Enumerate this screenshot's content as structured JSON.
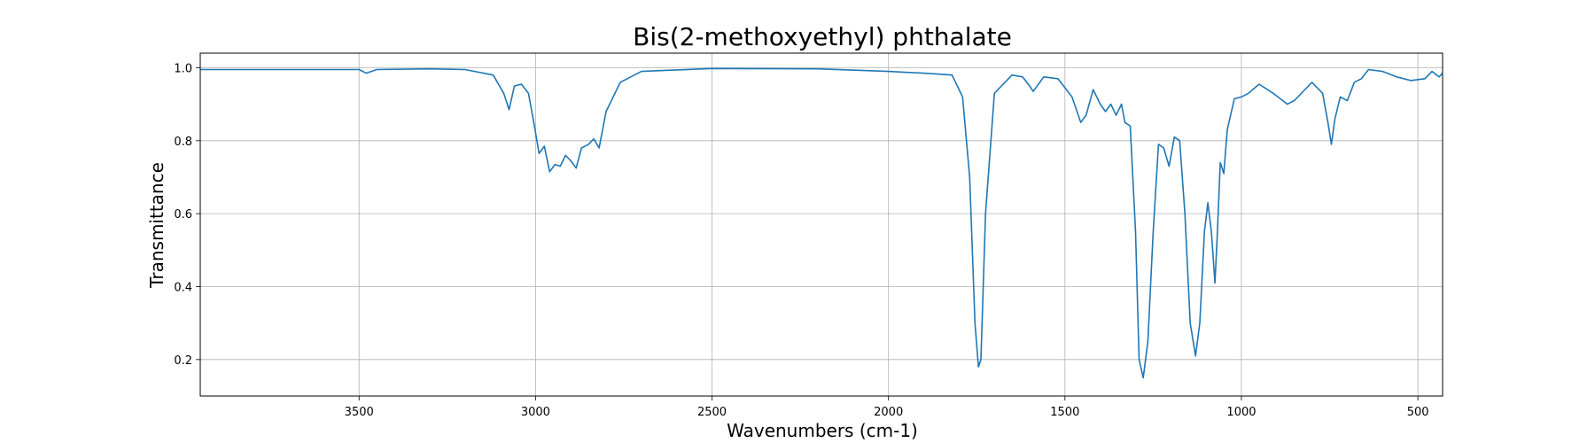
{
  "chart_data": {
    "type": "line",
    "title": "Bis(2-methoxyethyl) phthalate",
    "xlabel": "Wavenumbers (cm-1)",
    "ylabel": "Transmittance",
    "xlim": [
      3950,
      430
    ],
    "ylim": [
      0.1,
      1.04
    ],
    "x_reversed": true,
    "grid": true,
    "xticks": [
      3500,
      3000,
      2500,
      2000,
      1500,
      1000,
      500
    ],
    "yticks": [
      0.2,
      0.4,
      0.6,
      0.8,
      1.0
    ],
    "xtick_labels": [
      "3500",
      "3000",
      "2500",
      "2000",
      "1500",
      "1000",
      "500"
    ],
    "ytick_labels": [
      "0.2",
      "0.4",
      "0.6",
      "0.8",
      "1.0"
    ],
    "line_color": "#1f77b4",
    "series": [
      {
        "x": [
          3950,
          3700,
          3500,
          3480,
          3450,
          3300,
          3200,
          3120,
          3090,
          3075,
          3060,
          3040,
          3020,
          3005,
          2990,
          2975,
          2960,
          2945,
          2930,
          2915,
          2900,
          2885,
          2870,
          2850,
          2835,
          2820,
          2800,
          2760,
          2700,
          2500,
          2200,
          2000,
          1900,
          1820,
          1790,
          1770,
          1755,
          1745,
          1738,
          1725,
          1700,
          1650,
          1620,
          1600,
          1590,
          1560,
          1520,
          1480,
          1455,
          1440,
          1420,
          1400,
          1385,
          1370,
          1355,
          1340,
          1330,
          1315,
          1300,
          1290,
          1278,
          1265,
          1250,
          1235,
          1220,
          1205,
          1190,
          1175,
          1160,
          1145,
          1130,
          1118,
          1105,
          1095,
          1085,
          1075,
          1068,
          1060,
          1050,
          1040,
          1020,
          1000,
          980,
          950,
          910,
          870,
          850,
          800,
          770,
          755,
          745,
          735,
          720,
          700,
          680,
          660,
          640,
          600,
          560,
          520,
          480,
          460,
          440,
          430
        ],
        "y": [
          0.995,
          0.995,
          0.995,
          0.985,
          0.995,
          0.997,
          0.995,
          0.98,
          0.93,
          0.885,
          0.95,
          0.955,
          0.93,
          0.85,
          0.765,
          0.785,
          0.715,
          0.735,
          0.73,
          0.76,
          0.745,
          0.725,
          0.78,
          0.79,
          0.805,
          0.78,
          0.88,
          0.96,
          0.99,
          0.998,
          0.997,
          0.99,
          0.985,
          0.98,
          0.92,
          0.7,
          0.3,
          0.18,
          0.2,
          0.6,
          0.93,
          0.98,
          0.975,
          0.95,
          0.935,
          0.975,
          0.97,
          0.92,
          0.85,
          0.87,
          0.94,
          0.9,
          0.88,
          0.9,
          0.87,
          0.9,
          0.85,
          0.84,
          0.55,
          0.2,
          0.15,
          0.25,
          0.55,
          0.79,
          0.78,
          0.73,
          0.81,
          0.8,
          0.6,
          0.3,
          0.21,
          0.3,
          0.55,
          0.63,
          0.55,
          0.41,
          0.55,
          0.74,
          0.71,
          0.83,
          0.915,
          0.92,
          0.93,
          0.955,
          0.93,
          0.9,
          0.91,
          0.96,
          0.93,
          0.85,
          0.79,
          0.86,
          0.92,
          0.91,
          0.96,
          0.97,
          0.995,
          0.99,
          0.975,
          0.965,
          0.97,
          0.99,
          0.975,
          0.985
        ]
      }
    ]
  }
}
